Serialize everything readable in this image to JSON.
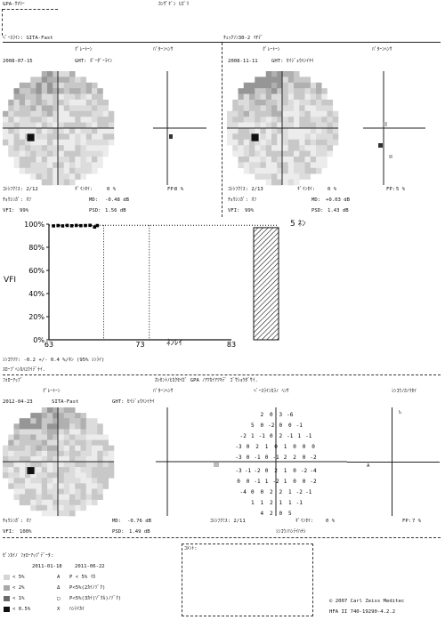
{
  "header": {
    "title": "GPA-ｻﾏﾘｰ",
    "subtitle": "ｶﾝｻﾞｷﾞﾝ ﾋｶﾞﾘ",
    "baseline_label": "ﾍﾞｰｽﾗｲﾝ: SITA-Fast",
    "test_label": "ﾁｪｯｸｿﾝ30-2 ｲﾁﾃﾞ"
  },
  "exam1": {
    "date": "2008-07-15",
    "graytone": "ｸﾞﾚｰﾄｰﾝ",
    "pattern": "ﾊﾟﾀｰﾝﾍﾝｻ",
    "ght": "GHT: ﾎﾞｰﾀﾞｰﾗｲﾝ",
    "fixation_loss": "ｺｼｼﾌｸﾐｽ: 2/12",
    "false_neg": "ｷﾞｲﾝｾｲ:",
    "false_neg_val": "0 %",
    "false_pos": "FP:",
    "false_pos_val": "0 %",
    "fix_monitor": "ﾁｮｳｼﾝｶﾞ: ｵﾌ",
    "md": "MD:",
    "md_val": "-0.48 dB",
    "vfi": "VFI:",
    "vfi_val": "99%",
    "psd": "PSD:",
    "psd_val": "1.56 dB"
  },
  "exam2": {
    "date": "2008-11-11",
    "graytone": "ｸﾞﾚｰﾄｰﾝ",
    "pattern": "ﾊﾟﾀｰﾝﾍﾝｻ",
    "ght": "GHT: ｾｲｼﾞｮｳﾊﾝｲﾅｲ",
    "fixation_loss": "ｺｼｼﾌｸﾐｽ: 2/13",
    "false_neg": "ｷﾞｲﾝｾｲ:",
    "false_neg_val": "0 %",
    "false_pos": "FP:",
    "false_pos_val": "5 %",
    "fix_monitor": "ﾁｮｳｼﾝｶﾞ: ｵﾌ",
    "md": "MD:",
    "md_val": "+0.03 dB",
    "vfi": "VFI:",
    "vfi_val": "99%",
    "psd": "PSD:",
    "psd_val": "1.43 dB"
  },
  "chart_data": {
    "type": "scatter",
    "ylabel": "VFI",
    "xlabel": "ﾈﾝﾚｲ",
    "y_ticks": [
      "100%",
      "80%",
      "60%",
      "40%",
      "20%",
      "0%"
    ],
    "x_ticks": [
      "63",
      "73",
      "83"
    ],
    "xlim": [
      63,
      83
    ],
    "ylim": [
      0,
      100
    ],
    "x": [
      63.5,
      64.0,
      64.5,
      65.0,
      65.5,
      66.0,
      66.5,
      67.0,
      67.5,
      68.0,
      68.3
    ],
    "y": [
      98.5,
      98.8,
      98.5,
      98.9,
      98.6,
      98.9,
      98.7,
      98.8,
      99.0,
      97.5,
      98.8
    ],
    "projection_label": "5 ﾈﾝ",
    "projection_value": 97,
    "rate_text": "ｼﾝｺｳﾘﾂ: -0.2 +/- 0.4 %/ﾈﾝ (95% ｼﾝﾗｲ)",
    "slope_text": "ｽﾛｰﾌﾟﾍﾝｶﾊﾕｳｲﾃﾞﾅｲ."
  },
  "followup": {
    "section_label": "ﾌｫﾛｰｱｯﾌﾟ",
    "date": "2012-04-23",
    "strategy": "SITA-Fast",
    "graytone": "ｸﾞﾚｰﾄｰﾝ",
    "pattern": "ﾊﾟﾀｰﾝﾍﾝｻ",
    "baseline_dev": "ﾍﾞｰｽﾗｲﾝｶﾗﾉ ﾍﾝｻ",
    "progression": "ｼﾝｺｳﾉｶﾉｳｾｲ",
    "ght": "GHT: ｾｲｼﾞｮｳﾊﾝｲﾅｲ",
    "compare_text": "ｶﾝｾﾝﾄﾉﾋｶｸｾｲｶﾞ GPA ﾉｱﾂｶｲｱﾂｷﾃﾞ ｺﾞｻｼｮｳﾀﾞｻｲ.",
    "fix_monitor": "ﾁｮｳｼﾝｶﾞ: ｵﾌ",
    "md": "MD:",
    "md_val": "-0.76 dB",
    "fixation_loss": "ｺｼｼﾌｸﾐｽ: 2/11",
    "false_neg": "ｷﾞｲﾝｾｲ:",
    "false_neg_val": "0 %",
    "false_pos": "FP:",
    "false_pos_val": "7 %",
    "vfi": "VFI:",
    "vfi_val": "100%",
    "psd": "PSD:",
    "psd_val": "1.49 dB",
    "no_progress": "ｼﾝｺｳﾉﾊﾝﾃｲﾊﾅｼ",
    "deviation_rows": [
      [
        "2",
        "0",
        "3",
        "-6"
      ],
      [
        "5",
        "0",
        "-2",
        "0",
        "0",
        "-1"
      ],
      [
        "-2",
        "1",
        "-1",
        "0",
        "2",
        "-1",
        "1",
        "-1"
      ],
      [
        "-3",
        "0",
        "2",
        "1",
        "0",
        "1",
        "0",
        "0",
        "0"
      ],
      [
        "-3",
        "0",
        "-1",
        "0",
        "-1",
        "2",
        "2",
        "0",
        "-2"
      ],
      [
        "-3",
        "-1",
        "-2",
        "0",
        "2",
        "1",
        "0",
        "-2",
        "-4"
      ],
      [
        "0",
        "0",
        "-1",
        "1",
        "-2",
        "1",
        "0",
        "0",
        "-2"
      ],
      [
        "-4",
        "0",
        "0",
        "2",
        "2",
        "1",
        "-2",
        "-1"
      ],
      [
        "1",
        "1",
        "2",
        "1",
        "1",
        "-1"
      ],
      [
        "4",
        "2",
        "0",
        "5"
      ]
    ]
  },
  "legend": {
    "title": "ｾﾞﾝｶｲﾉ ﾌｫﾛｰｱｯﾌﾟﾃﾞｰﾀ:",
    "date1": "2011-01-18",
    "date2": "2011-06-22",
    "items": [
      {
        "label": "< 5%",
        "sym_text": "A",
        "desc": "P < 5% ｲｶ"
      },
      {
        "label": "< 2%",
        "sym_text": "Δ",
        "desc": "P<5%(2ｶｲﾉｿﾞｸ)"
      },
      {
        "label": "< 1%",
        "sym_text": "□",
        "desc": "P<5%(3ｶｲ(ｿﾞｸﾙ)ﾉｿﾞｸ)"
      },
      {
        "label": "< 0.5%",
        "sym_text": "X",
        "desc": "ﾊﾝﾃｲｶｲ"
      }
    ],
    "notes": "ｺﾒﾝﾄ:",
    "copyright": "© 2007 Carl Zeiss Meditec",
    "version": "HFA II 740-19290-4.2.2"
  },
  "colors": {
    "bg": "#ffffff",
    "ink": "#111111",
    "gray_light": "#e0e0e0",
    "gray_mid": "#bdbdbd",
    "gray_dark": "#8e8e8e",
    "black": "#000000"
  }
}
